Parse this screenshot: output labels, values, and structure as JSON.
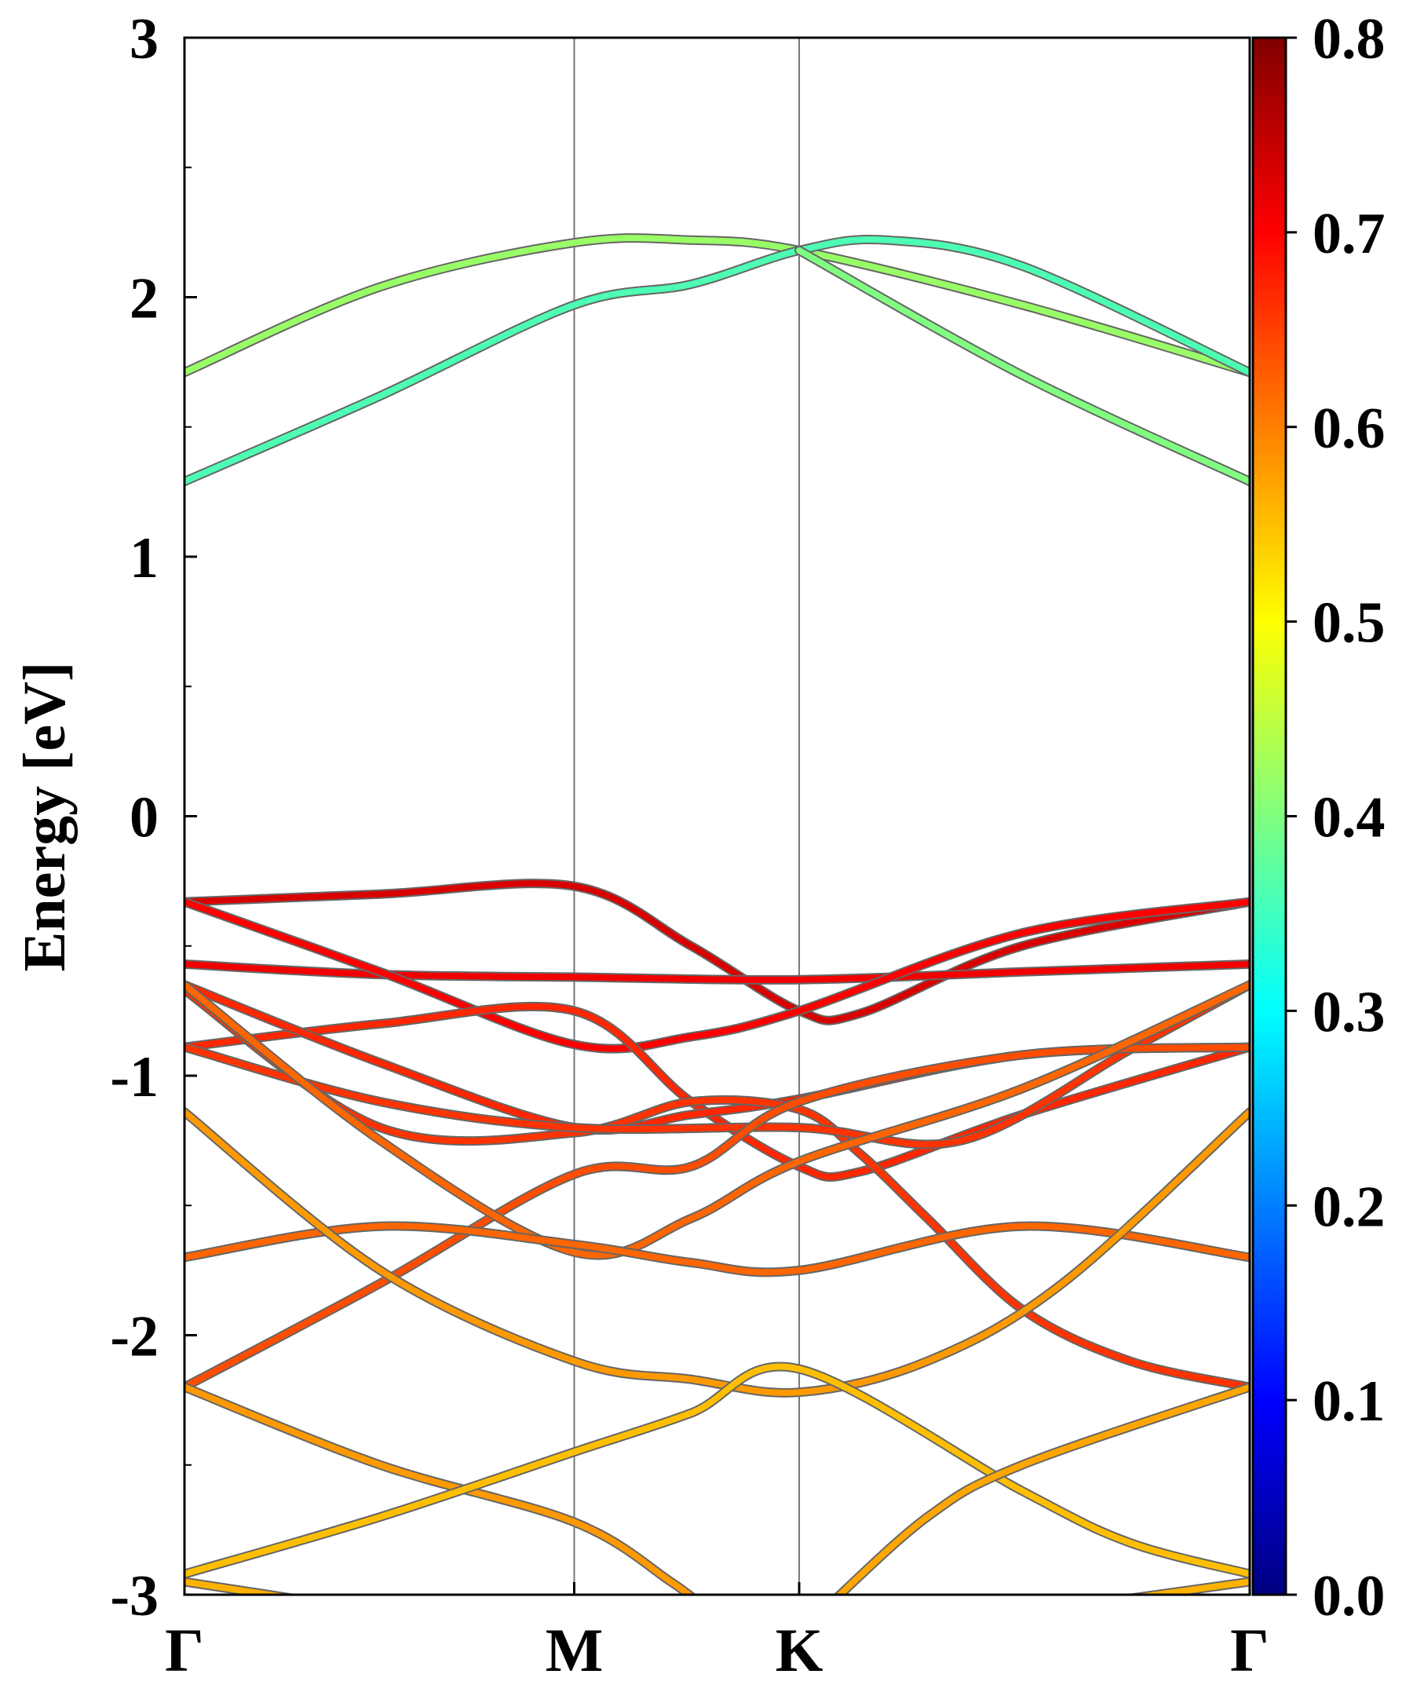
{
  "chart_data": {
    "type": "line",
    "title": "",
    "xlabel": "",
    "ylabel": "Energy [eV]",
    "ylim": [
      -3,
      3
    ],
    "y_ticks": [
      "3",
      "2",
      "1",
      "0",
      "-1",
      "-2",
      "-3"
    ],
    "x_ticks": [
      {
        "label": "Γ",
        "pos": 0.0
      },
      {
        "label": "M",
        "pos": 0.577
      },
      {
        "label": "K",
        "pos": 0.91
      },
      {
        "label": "Γ",
        "pos": 1.577
      }
    ],
    "vertical_lines_at": [
      0.577,
      0.91
    ],
    "colorbar": {
      "colormap": "jet",
      "range": [
        0.0,
        0.8
      ],
      "ticks": [
        "0.0",
        "0.1",
        "0.2",
        "0.3",
        "0.4",
        "0.5",
        "0.6",
        "0.7",
        "0.8"
      ]
    },
    "series": [
      {
        "color_value": 0.42,
        "points": [
          [
            0,
            1.71
          ],
          [
            0.29,
            2.04
          ],
          [
            0.577,
            2.21
          ],
          [
            0.75,
            2.22
          ],
          [
            0.91,
            2.18
          ],
          [
            1.24,
            1.97
          ],
          [
            1.577,
            1.71
          ]
        ]
      },
      {
        "color_value": 0.36,
        "points": [
          [
            0,
            1.29
          ],
          [
            0.29,
            1.62
          ],
          [
            0.577,
            1.97
          ],
          [
            0.75,
            2.05
          ],
          [
            0.91,
            2.18
          ],
          [
            1.04,
            2.22
          ],
          [
            1.24,
            2.12
          ],
          [
            1.577,
            1.71
          ]
        ]
      },
      {
        "color_value": 0.4,
        "points": [
          [
            0.91,
            2.18
          ],
          [
            1.24,
            1.7
          ],
          [
            1.577,
            1.29
          ]
        ]
      },
      {
        "color_value": 0.73,
        "points": [
          [
            0,
            -0.33
          ],
          [
            0.29,
            -0.3
          ],
          [
            0.577,
            -0.27
          ],
          [
            0.75,
            -0.5
          ],
          [
            0.91,
            -0.75
          ],
          [
            1.0,
            -0.76
          ],
          [
            1.24,
            -0.5
          ],
          [
            1.577,
            -0.33
          ]
        ]
      },
      {
        "color_value": 0.71,
        "points": [
          [
            0,
            -0.57
          ],
          [
            0.29,
            -0.61
          ],
          [
            0.577,
            -0.62
          ],
          [
            0.91,
            -0.63
          ],
          [
            1.24,
            -0.6
          ],
          [
            1.577,
            -0.57
          ]
        ]
      },
      {
        "color_value": 0.7,
        "points": [
          [
            0,
            -0.33
          ],
          [
            0.29,
            -0.6
          ],
          [
            0.577,
            -0.88
          ],
          [
            0.75,
            -0.85
          ],
          [
            0.91,
            -0.75
          ],
          [
            1.24,
            -0.45
          ],
          [
            1.577,
            -0.33
          ]
        ]
      },
      {
        "color_value": 0.67,
        "points": [
          [
            0,
            -0.89
          ],
          [
            0.29,
            -0.8
          ],
          [
            0.577,
            -0.75
          ],
          [
            0.75,
            -1.1
          ],
          [
            0.91,
            -1.35
          ],
          [
            1.0,
            -1.37
          ],
          [
            1.24,
            -1.15
          ],
          [
            1.577,
            -0.89
          ]
        ]
      },
      {
        "color_value": 0.67,
        "points": [
          [
            0,
            -0.65
          ],
          [
            0.29,
            -0.95
          ],
          [
            0.577,
            -1.2
          ],
          [
            0.75,
            -1.15
          ],
          [
            0.91,
            -1.09
          ],
          [
            1.24,
            -0.92
          ],
          [
            1.577,
            -0.89
          ]
        ]
      },
      {
        "color_value": 0.66,
        "points": [
          [
            0,
            -0.67
          ],
          [
            0.29,
            -1.2
          ],
          [
            0.577,
            -1.22
          ],
          [
            0.75,
            -1.1
          ],
          [
            0.91,
            -1.13
          ],
          [
            1.0,
            -1.3
          ],
          [
            1.1,
            -1.55
          ],
          [
            1.24,
            -1.9
          ],
          [
            1.4,
            -2.1
          ],
          [
            1.577,
            -2.2
          ]
        ]
      },
      {
        "color_value": 0.66,
        "points": [
          [
            0,
            -0.89
          ],
          [
            0.29,
            -1.1
          ],
          [
            0.577,
            -1.2
          ],
          [
            0.91,
            -1.2
          ],
          [
            1.15,
            -1.25
          ],
          [
            1.4,
            -0.9
          ],
          [
            1.577,
            -0.65
          ]
        ]
      },
      {
        "color_value": 0.64,
        "points": [
          [
            0,
            -2.2
          ],
          [
            0.29,
            -1.8
          ],
          [
            0.577,
            -1.38
          ],
          [
            0.75,
            -1.35
          ],
          [
            0.91,
            -1.1
          ],
          [
            1.24,
            -0.92
          ],
          [
            1.577,
            -0.89
          ]
        ]
      },
      {
        "color_value": 0.62,
        "points": [
          [
            0,
            -0.65
          ],
          [
            0.29,
            -1.25
          ],
          [
            0.577,
            -1.68
          ],
          [
            0.75,
            -1.55
          ],
          [
            0.91,
            -1.33
          ],
          [
            1.24,
            -1.05
          ],
          [
            1.577,
            -0.65
          ]
        ]
      },
      {
        "color_value": 0.62,
        "points": [
          [
            0,
            -1.7
          ],
          [
            0.29,
            -1.58
          ],
          [
            0.577,
            -1.65
          ],
          [
            0.75,
            -1.72
          ],
          [
            0.91,
            -1.75
          ],
          [
            1.24,
            -1.58
          ],
          [
            1.577,
            -1.7
          ]
        ]
      },
      {
        "color_value": 0.58,
        "points": [
          [
            0,
            -1.14
          ],
          [
            0.29,
            -1.75
          ],
          [
            0.577,
            -2.1
          ],
          [
            0.75,
            -2.17
          ],
          [
            0.91,
            -2.22
          ],
          [
            1.1,
            -2.1
          ],
          [
            1.3,
            -1.8
          ],
          [
            1.577,
            -1.14
          ]
        ]
      },
      {
        "color_value": 0.58,
        "points": [
          [
            0,
            -2.2
          ],
          [
            0.29,
            -2.5
          ],
          [
            0.577,
            -2.72
          ],
          [
            0.72,
            -2.95
          ],
          [
            0.77,
            -3.05
          ]
        ]
      },
      {
        "color_value": 0.55,
        "points": [
          [
            0,
            -2.92
          ],
          [
            0.29,
            -2.7
          ],
          [
            0.577,
            -2.45
          ],
          [
            0.75,
            -2.3
          ],
          [
            0.91,
            -2.13
          ],
          [
            1.24,
            -2.6
          ],
          [
            1.4,
            -2.8
          ],
          [
            1.577,
            -2.92
          ]
        ]
      },
      {
        "color_value": 0.56,
        "points": [
          [
            0,
            -2.95
          ],
          [
            0.25,
            -3.05
          ]
        ]
      },
      {
        "color_value": 0.57,
        "points": [
          [
            0.95,
            -3.05
          ],
          [
            1.1,
            -2.7
          ],
          [
            1.24,
            -2.5
          ],
          [
            1.577,
            -2.2
          ]
        ]
      },
      {
        "color_value": 0.56,
        "points": [
          [
            1.3,
            -3.05
          ],
          [
            1.577,
            -2.95
          ]
        ]
      }
    ]
  }
}
